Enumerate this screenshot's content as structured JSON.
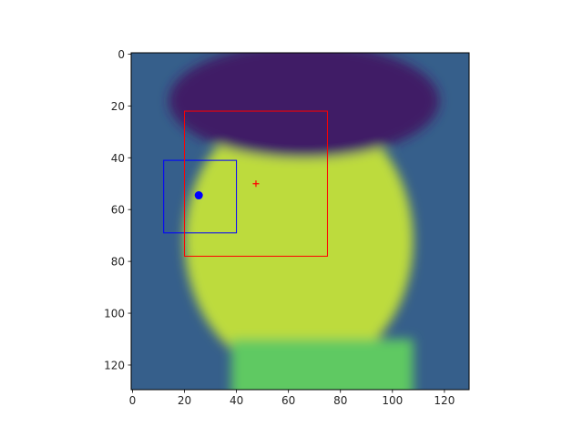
{
  "chart_data": {
    "type": "image",
    "title": "",
    "xlabel": "",
    "ylabel": "",
    "xlim": [
      -0.5,
      129.5
    ],
    "ylim": [
      129.5,
      -0.5
    ],
    "x_ticks": [
      0,
      20,
      40,
      60,
      80,
      100,
      120
    ],
    "y_ticks": [
      0,
      20,
      40,
      60,
      80,
      100,
      120
    ],
    "colormap": "viridis",
    "image_description_shapes": {
      "background_level": 0.3,
      "face": {
        "cx": 64,
        "cy": 72,
        "rx": 44,
        "ry": 52,
        "level": 0.9
      },
      "hair": {
        "cx": 66,
        "cy": 18,
        "rx": 52,
        "ry": 22,
        "level": 0.08
      },
      "neck": {
        "x0": 38,
        "x1": 108,
        "y0": 110,
        "y1": 129,
        "level": 0.75
      }
    },
    "overlays": [
      {
        "name": "blue-box",
        "kind": "rectangle",
        "x0": 12,
        "y0": 41,
        "x1": 40,
        "y1": 69,
        "color": "#0000ff"
      },
      {
        "name": "red-box",
        "kind": "rectangle",
        "x0": 20,
        "y0": 22,
        "x1": 75,
        "y1": 78,
        "color": "#ff0000"
      },
      {
        "name": "blue-point",
        "kind": "point",
        "x": 25.5,
        "y": 54.5,
        "marker": "circle",
        "color": "#0000ff"
      },
      {
        "name": "red-point",
        "kind": "point",
        "x": 47.5,
        "y": 50,
        "marker": "plus",
        "color": "#ff0000"
      }
    ]
  }
}
